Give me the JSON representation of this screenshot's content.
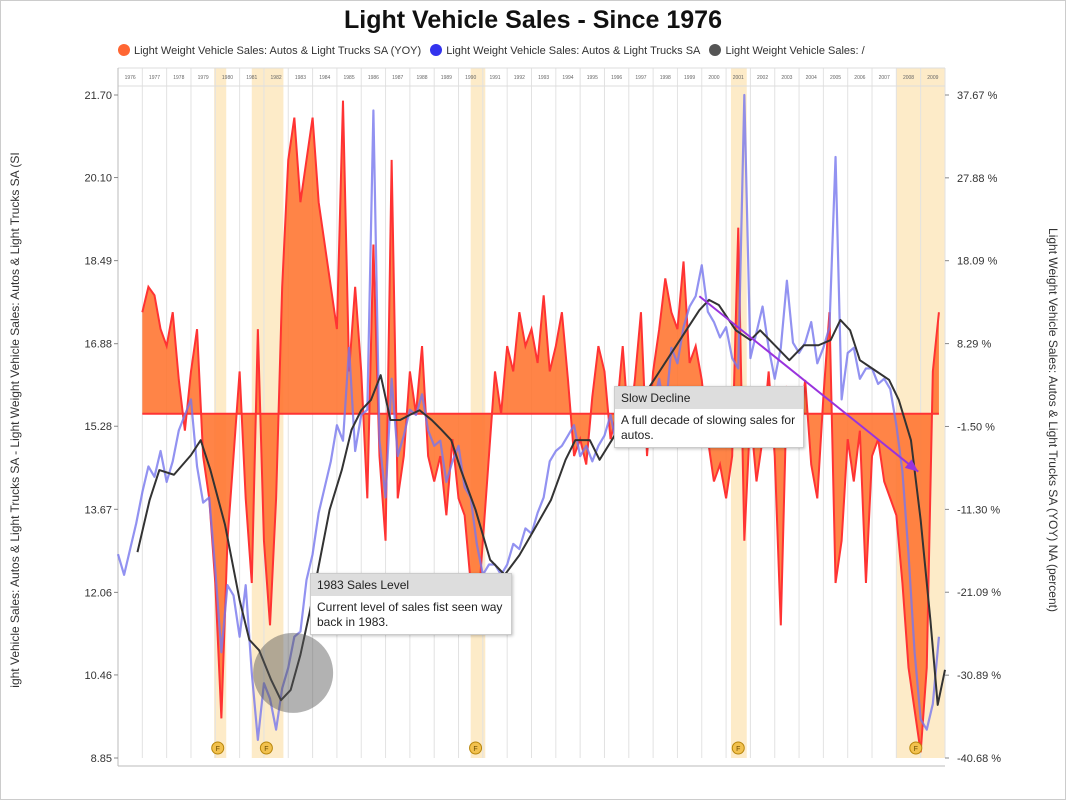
{
  "chart_data": {
    "type": "line",
    "title": "Light Vehicle Sales - Since 1976",
    "legend": {
      "placement": "top",
      "items": [
        {
          "label": "Light Weight Vehicle Sales: Autos & Light Trucks SA (YOY)",
          "color": "#ff6633"
        },
        {
          "label": "Light Weight Vehicle Sales: Autos & Light Trucks SA",
          "color": "#3333ee"
        },
        {
          "label": "Light Weight Vehicle Sales: /",
          "color": "#555555"
        }
      ]
    },
    "ylabel_left": "ight Vehicle Sales: Autos & Light Trucks SA  - Light Weight Vehicle Sales: Autos & Light Trucks SA (SI",
    "ylabel_right": "Light Weight Vehicle Sales: Autos & Light Trucks SA (YOY) NA (percent)",
    "xlim": [
      1976,
      2010
    ],
    "ylim_left": [
      8.85,
      21.7
    ],
    "ylim_right": [
      -40.68,
      37.67
    ],
    "grid": "vertical yearly",
    "x_ticks": [
      "1976",
      "1977",
      "1978",
      "1979",
      "1980",
      "1981",
      "1982",
      "1983",
      "1984",
      "1985",
      "1986",
      "1987",
      "1988",
      "1989",
      "1990",
      "1991",
      "1992",
      "1993",
      "1994",
      "1995",
      "1996",
      "1997",
      "1998",
      "1999",
      "2000",
      "2001",
      "2002",
      "2003",
      "2004",
      "2005",
      "2006",
      "2007",
      "2008",
      "2009"
    ],
    "y_ticks_left": [
      "21.70",
      "20.10",
      "18.49",
      "16.88",
      "15.28",
      "13.67",
      "12.06",
      "10.46",
      "8.85"
    ],
    "y_ticks_right": [
      "37.67 %",
      "27.88 %",
      "18.09 %",
      "8.29 %",
      "-1.50 %",
      "-11.30 %",
      "-21.09 %",
      "-30.89 %",
      "-40.68 %"
    ],
    "recessions": [
      [
        1979.95,
        1980.45
      ],
      [
        1981.5,
        1982.8
      ],
      [
        1990.5,
        1991.1
      ],
      [
        2001.2,
        2001.85
      ],
      [
        2008.0,
        2010.0
      ]
    ],
    "recession_color": "#fdebc8",
    "series": [
      {
        "name": "Light Weight Vehicle Sales: Autos & Light Trucks SA (YOY)",
        "axis": "right",
        "style": "area",
        "color": "#ff3333",
        "fill": "#ff7733",
        "x_start": 1977.0,
        "x_step": 0.25,
        "values": [
          12,
          15,
          14,
          10,
          8,
          12,
          4,
          -2,
          5,
          10,
          -5,
          -10,
          -20,
          -36,
          -15,
          -5,
          5,
          -10,
          -20,
          10,
          -15,
          -25,
          -10,
          15,
          30,
          35,
          25,
          30,
          35,
          25,
          20,
          15,
          10,
          37,
          5,
          15,
          5,
          -10,
          20,
          -5,
          -15,
          30,
          -10,
          -5,
          5,
          0,
          8,
          -5,
          -8,
          -5,
          -12,
          -3,
          -10,
          -12,
          -20,
          -25,
          -15,
          -5,
          5,
          0,
          8,
          5,
          12,
          8,
          10,
          6,
          14,
          5,
          8,
          12,
          4,
          -5,
          -3,
          -6,
          2,
          8,
          5,
          -3,
          0,
          8,
          -2,
          4,
          12,
          -5,
          5,
          10,
          16,
          12,
          10,
          18,
          6,
          8,
          4,
          -3,
          -8,
          -6,
          -10,
          -5,
          22,
          -15,
          0,
          -8,
          -3,
          5,
          -5,
          -25,
          3,
          2,
          -3,
          4,
          -6,
          -10,
          2,
          12,
          -20,
          -15,
          -3,
          -8,
          -2,
          -20,
          -5,
          -3,
          -8,
          -10,
          -12,
          -20,
          -30,
          -35,
          -40,
          -30,
          5,
          12
        ]
      },
      {
        "name": "Light Weight Vehicle Sales: Autos & Light Trucks SA",
        "axis": "left",
        "style": "line",
        "color": "#7777ee",
        "x_start": 1976.0,
        "x_step": 0.25,
        "values": [
          12.8,
          12.4,
          12.9,
          13.4,
          14.0,
          14.5,
          14.3,
          14.8,
          14.2,
          14.6,
          15.2,
          15.5,
          15.8,
          14.5,
          13.8,
          13.9,
          12.5,
          10.9,
          12.2,
          12.0,
          11.2,
          12.2,
          10.5,
          9.2,
          10.3,
          10.0,
          9.4,
          10.2,
          10.6,
          11.2,
          11.3,
          12.3,
          12.8,
          13.6,
          14.1,
          14.6,
          15.3,
          15.0,
          16.8,
          14.8,
          15.5,
          15.6,
          21.4,
          15.0,
          13.9,
          16.2,
          14.7,
          15.1,
          15.6,
          15.5,
          15.9,
          15.2,
          14.9,
          15.0,
          14.2,
          14.6,
          14.9,
          14.1,
          13.9,
          13.0,
          12.4,
          12.6,
          12.6,
          12.4,
          12.6,
          13.0,
          12.9,
          13.3,
          13.2,
          13.6,
          13.9,
          14.6,
          14.8,
          14.9,
          15.1,
          15.3,
          14.7,
          14.9,
          14.6,
          14.9,
          15.1,
          15.5,
          14.9,
          15.3,
          15.6,
          15.1,
          15.9,
          15.4,
          15.7,
          16.2,
          15.5,
          16.8,
          16.5,
          17.2,
          17.6,
          17.8,
          18.4,
          17.5,
          17.3,
          17.0,
          17.2,
          16.6,
          16.4,
          21.7,
          16.6,
          17.1,
          17.6,
          16.8,
          16.2,
          16.8,
          18.1,
          16.9,
          16.7,
          16.9,
          17.3,
          16.5,
          16.8,
          17.2,
          20.5,
          15.8,
          16.7,
          16.8,
          16.2,
          16.4,
          16.4,
          16.1,
          16.2,
          16.0,
          15.3,
          14.4,
          12.8,
          10.9,
          9.6,
          9.4,
          9.9,
          11.2
        ]
      },
      {
        "axis": "left",
        "style": "line",
        "color": "#333333",
        "x": [
          1976.8,
          1977.3,
          1977.7,
          1978.3,
          1979.0,
          1979.4,
          1979.8,
          1980.4,
          1981.0,
          1981.4,
          1981.8,
          1982.3,
          1982.7,
          1983.1,
          1983.5,
          1983.9,
          1984.3,
          1984.7,
          1985.2,
          1985.6,
          1986.0,
          1986.4,
          1986.8,
          1987.2,
          1987.6,
          1988.0,
          1988.4,
          1988.9,
          1989.3,
          1989.7,
          1990.1,
          1990.7,
          1991.3,
          1991.9,
          1992.5,
          1993.1,
          1993.8,
          1994.4,
          1994.8,
          1995.4,
          1995.8,
          1996.3,
          1996.8,
          1997.5,
          1998.3,
          1999.1,
          1999.9,
          2000.3,
          2000.7,
          2001.4,
          2002.0,
          2002.4,
          2003.0,
          2003.6,
          2004.2,
          2004.8,
          2005.3,
          2005.7,
          2006.1,
          2006.5,
          2007.1,
          2007.7,
          2008.1,
          2008.6,
          2009.0,
          2009.4,
          2009.7,
          2010.0
        ],
        "values": [
          12.84,
          13.85,
          14.43,
          14.34,
          14.72,
          15.01,
          14.43,
          13.37,
          11.91,
          11.14,
          10.94,
          10.36,
          9.97,
          10.17,
          10.85,
          11.72,
          12.69,
          13.66,
          14.43,
          15.21,
          15.59,
          15.79,
          16.27,
          15.4,
          15.4,
          15.5,
          15.59,
          15.4,
          15.21,
          15.01,
          14.43,
          13.66,
          12.69,
          12.4,
          12.78,
          13.27,
          13.85,
          14.63,
          15.01,
          15.01,
          14.63,
          15.01,
          15.4,
          15.79,
          16.37,
          16.95,
          17.53,
          17.73,
          17.63,
          17.14,
          16.95,
          17.14,
          16.85,
          16.56,
          16.85,
          16.85,
          16.95,
          17.34,
          17.14,
          16.56,
          16.37,
          16.18,
          15.79,
          15.01,
          13.46,
          11.52,
          9.88,
          10.56
        ]
      }
    ],
    "event_markers": {
      "label": "F",
      "x": [
        1980.1,
        1982.1,
        1990.7,
        2001.5,
        2008.8
      ]
    },
    "annotations": [
      {
        "title": "1983 Sales Level",
        "text": "Current level of sales fist seen way back in 1983.",
        "x": 1983.2,
        "y": 10.5
      },
      {
        "title": "Slow Decline",
        "text": "A full decade of slowing sales for autos.",
        "arrow_from": [
          1999.9,
          17.8
        ],
        "arrow_to": [
          2008.9,
          14.4
        ],
        "arrow_color": "#9933dd"
      }
    ]
  }
}
